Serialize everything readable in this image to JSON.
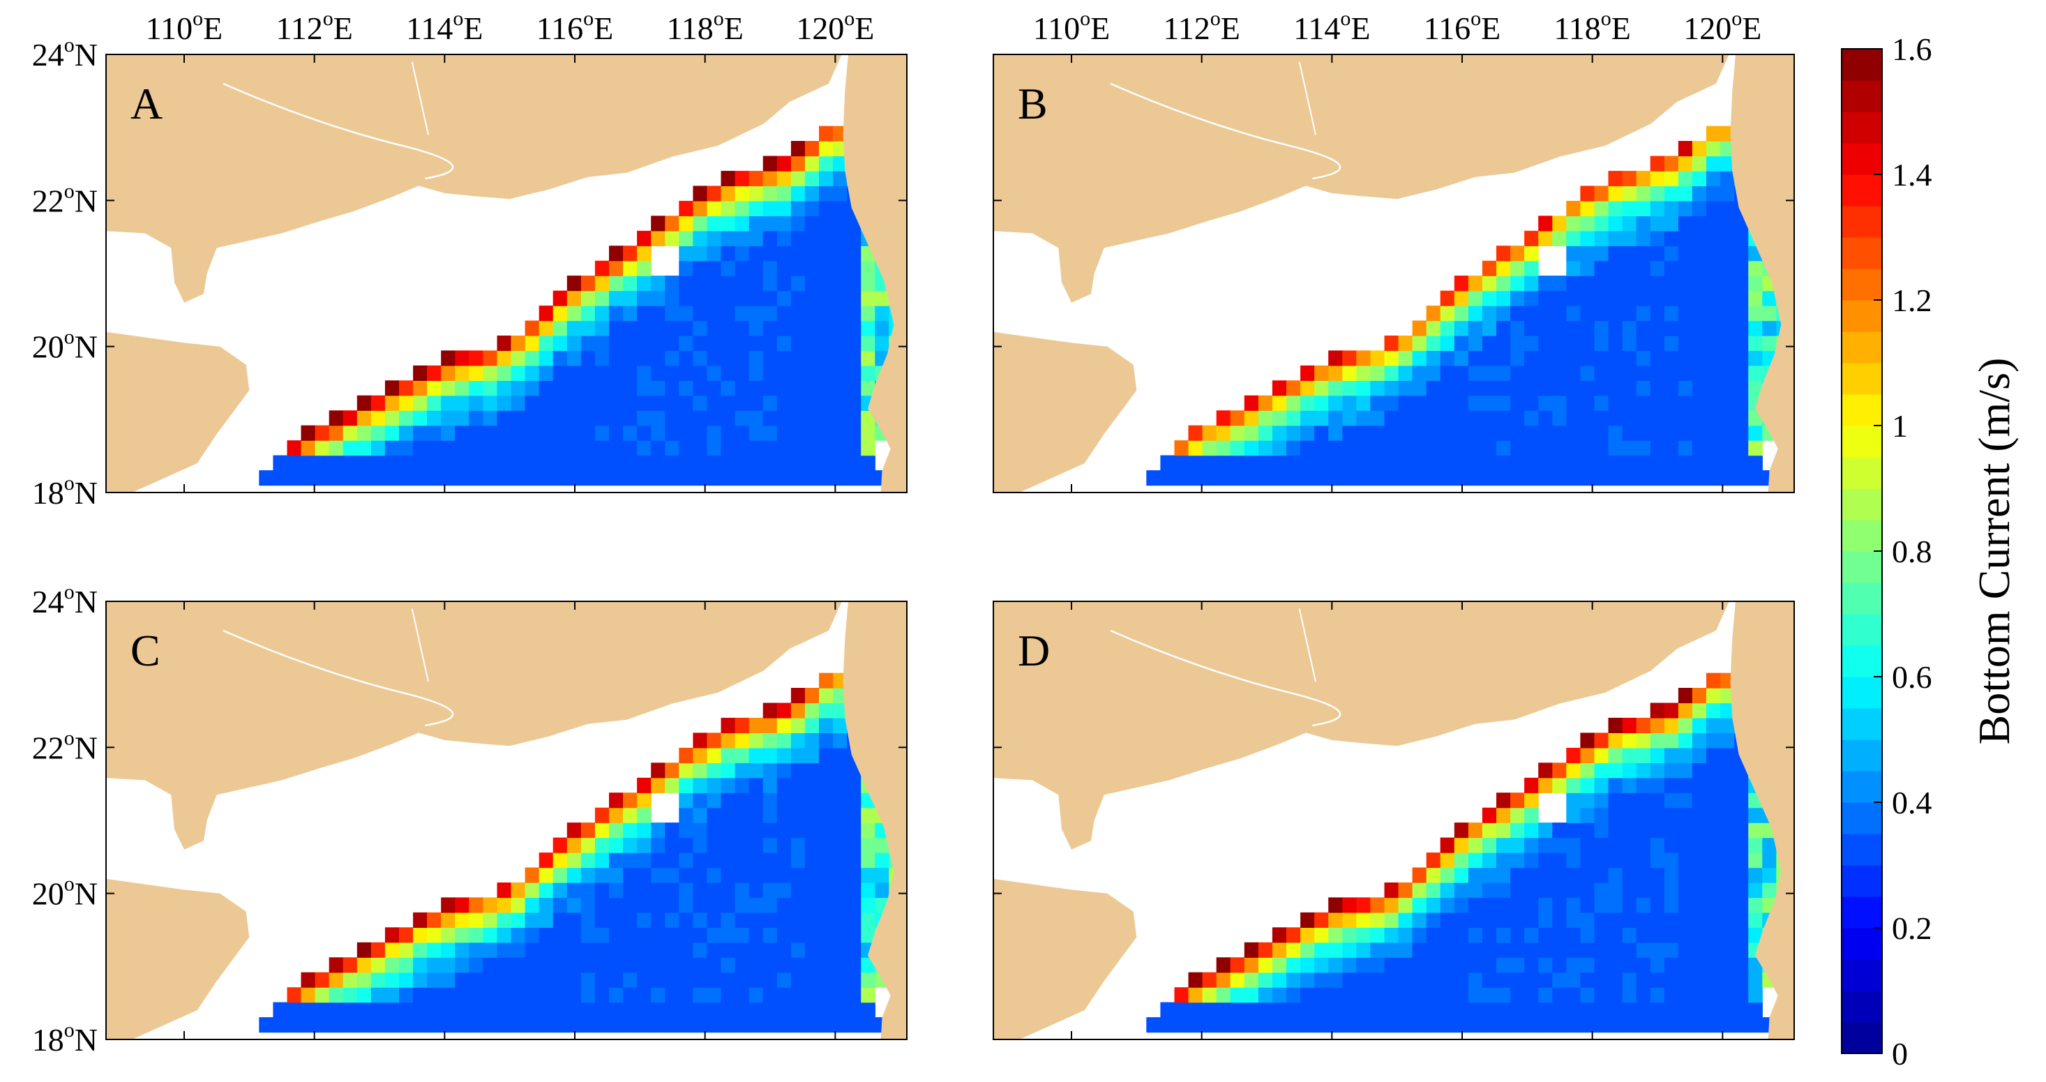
{
  "colors": {
    "land": "#ECC895",
    "sea": "#FFFFFF",
    "frame": "#000000",
    "colormap": [
      "#00008F",
      "#0000FF",
      "#0080FF",
      "#00FFFF",
      "#80FF80",
      "#FFFF00",
      "#FF8000",
      "#FF0000",
      "#800000"
    ]
  },
  "axes": {
    "lon_range": [
      108.8,
      121.1
    ],
    "lat_range": [
      18.0,
      24.0
    ],
    "lon_ticks": [
      {
        "value": 110,
        "text": "110°E"
      },
      {
        "value": 112,
        "text": "112°E"
      },
      {
        "value": 114,
        "text": "114°E"
      },
      {
        "value": 116,
        "text": "116°E"
      },
      {
        "value": 118,
        "text": "118°E"
      },
      {
        "value": 120,
        "text": "120°E"
      }
    ],
    "lat_ticks": [
      {
        "value": 24,
        "text": "24°N"
      },
      {
        "value": 22,
        "text": "22°N"
      },
      {
        "value": 20,
        "text": "20°N"
      },
      {
        "value": 18,
        "text": "18°N"
      }
    ]
  },
  "panels": [
    {
      "id": "A",
      "label": "A",
      "variant": 0
    },
    {
      "id": "B",
      "label": "B",
      "variant": 1
    },
    {
      "id": "C",
      "label": "C",
      "variant": 2
    },
    {
      "id": "D",
      "label": "D",
      "variant": 3
    }
  ],
  "colorbar": {
    "title": "Bottom Current (m/s)",
    "min": 0,
    "max": 1.6,
    "levels": 32,
    "ticks": [
      {
        "value": 0,
        "text": "0"
      },
      {
        "value": 0.2,
        "text": "0.2"
      },
      {
        "value": 0.4,
        "text": "0.4"
      },
      {
        "value": 0.6,
        "text": "0.6"
      },
      {
        "value": 0.8,
        "text": "0.8"
      },
      {
        "value": 1,
        "text": "1"
      },
      {
        "value": 1.2,
        "text": "1.2"
      },
      {
        "value": 1.4,
        "text": "1.4"
      },
      {
        "value": 1.6,
        "text": "1.6"
      }
    ]
  },
  "legend_icon": "colorbar-gradient"
}
